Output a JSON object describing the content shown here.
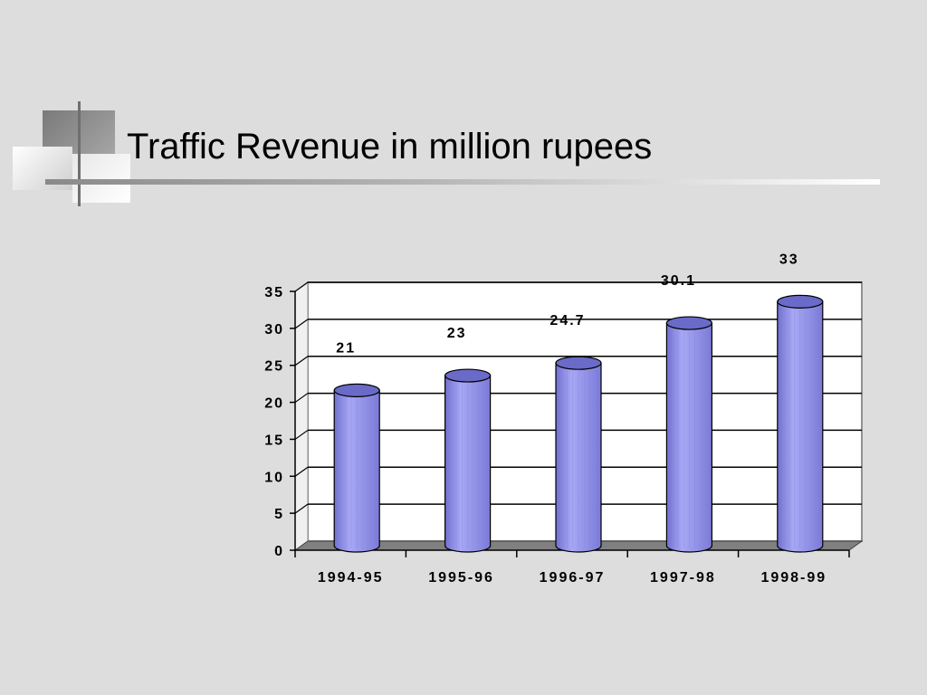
{
  "slide": {
    "title": "Traffic Revenue in million rupees"
  },
  "colors": {
    "bar": "#9999ee",
    "bar_dark": "#5a5ab0",
    "floor": "#808080",
    "plot_bg": "#ffffff",
    "page_bg": "#dddddd"
  },
  "chart_data": {
    "type": "bar",
    "style": "3d-cylinder",
    "title": "Traffic Revenue in million rupees",
    "xlabel": "",
    "ylabel": "",
    "categories": [
      "1994-95",
      "1995-96",
      "1996-97",
      "1997-98",
      "1998-99"
    ],
    "values": [
      21,
      23,
      24.7,
      30.1,
      33
    ],
    "data_labels": [
      "21",
      "23",
      "24.7",
      "30.1",
      "33"
    ],
    "ylim": [
      0,
      35
    ],
    "yticks": [
      0,
      5,
      10,
      15,
      20,
      25,
      30,
      35
    ],
    "grid": true,
    "legend": "none"
  }
}
